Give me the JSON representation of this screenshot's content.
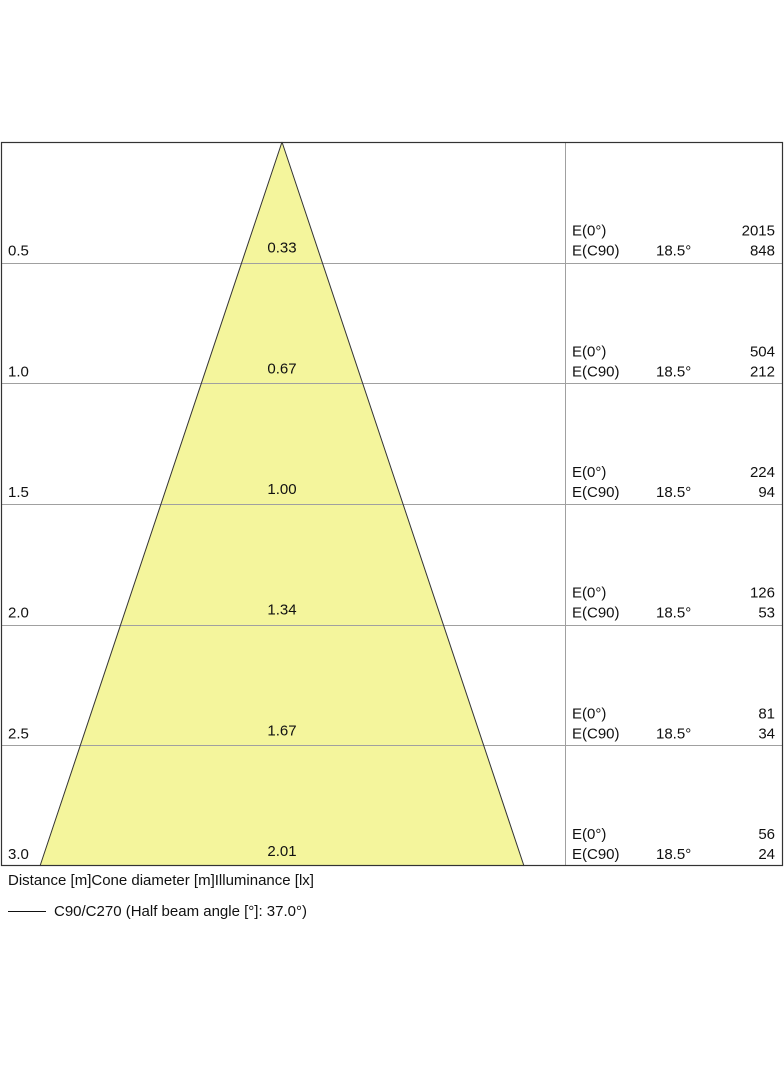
{
  "chart_data": {
    "type": "cone-diagram",
    "caption": "Distance [m]Cone diameter [m]Illuminance [lx]",
    "legend": "C90/C270 (Half beam angle [°]: 37.0°)",
    "fill_color": "#f4f59c",
    "rows": [
      {
        "distance": "0.5",
        "diameter": "0.33",
        "e0_label": "E(0°)",
        "e0": "2015",
        "ec90_label": "E(C90)",
        "angle": "18.5°",
        "ec90": "848"
      },
      {
        "distance": "1.0",
        "diameter": "0.67",
        "e0_label": "E(0°)",
        "e0": "504",
        "ec90_label": "E(C90)",
        "angle": "18.5°",
        "ec90": "212"
      },
      {
        "distance": "1.5",
        "diameter": "1.00",
        "e0_label": "E(0°)",
        "e0": "224",
        "ec90_label": "E(C90)",
        "angle": "18.5°",
        "ec90": "94"
      },
      {
        "distance": "2.0",
        "diameter": "1.34",
        "e0_label": "E(0°)",
        "e0": "126",
        "ec90_label": "E(C90)",
        "angle": "18.5°",
        "ec90": "53"
      },
      {
        "distance": "2.5",
        "diameter": "1.67",
        "e0_label": "E(0°)",
        "e0": "81",
        "ec90_label": "E(C90)",
        "angle": "18.5°",
        "ec90": "34"
      },
      {
        "distance": "3.0",
        "diameter": "2.01",
        "e0_label": "E(0°)",
        "e0": "56",
        "ec90_label": "E(C90)",
        "angle": "18.5°",
        "ec90": "24"
      }
    ]
  }
}
